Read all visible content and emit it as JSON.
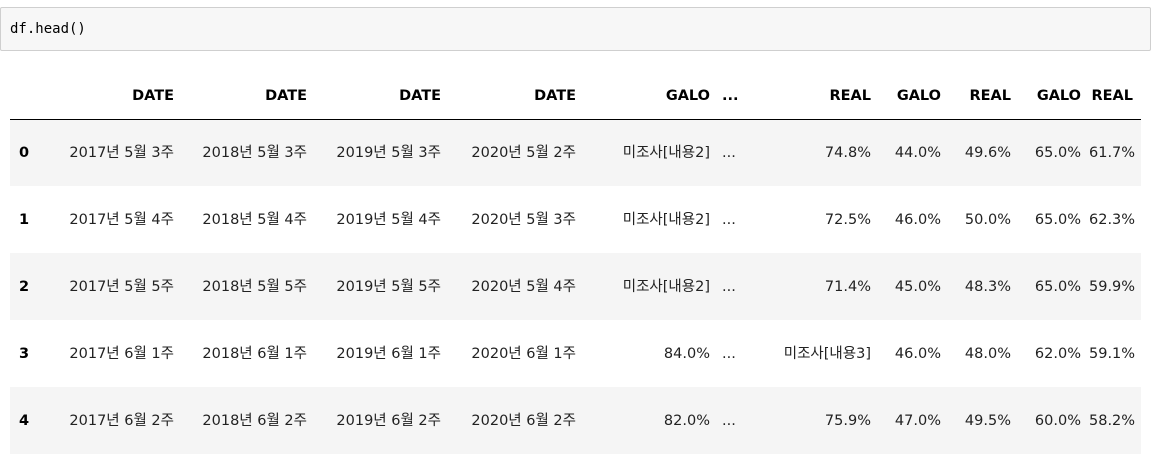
{
  "input_cell": {
    "code": "df.head()"
  },
  "table": {
    "columns": [
      "DATE",
      "DATE",
      "DATE",
      "DATE",
      "GALO",
      "...",
      "REAL",
      "GALO",
      "REAL",
      "GALO",
      "REAL"
    ],
    "index": [
      "0",
      "1",
      "2",
      "3",
      "4"
    ],
    "rows": [
      [
        "2017년 5월 3주",
        "2018년 5월 3주",
        "2019년 5월 3주",
        "2020년 5월 2주",
        "미조사[내용2]",
        "...",
        "74.8%",
        "44.0%",
        "49.6%",
        "65.0%",
        "61.7%"
      ],
      [
        "2017년 5월 4주",
        "2018년 5월 4주",
        "2019년 5월 4주",
        "2020년 5월 3주",
        "미조사[내용2]",
        "...",
        "72.5%",
        "46.0%",
        "50.0%",
        "65.0%",
        "62.3%"
      ],
      [
        "2017년 5월 5주",
        "2018년 5월 5주",
        "2019년 5월 5주",
        "2020년 5월 4주",
        "미조사[내용2]",
        "...",
        "71.4%",
        "45.0%",
        "48.3%",
        "65.0%",
        "59.9%"
      ],
      [
        "2017년 6월 1주",
        "2018년 6월 1주",
        "2019년 6월 1주",
        "2020년 6월 1주",
        "84.0%",
        "...",
        "미조사[내용3]",
        "46.0%",
        "48.0%",
        "62.0%",
        "59.1%"
      ],
      [
        "2017년 6월 2주",
        "2018년 6월 2주",
        "2019년 6월 2주",
        "2020년 6월 2주",
        "82.0%",
        "...",
        "75.9%",
        "47.0%",
        "49.5%",
        "60.0%",
        "58.2%"
      ]
    ]
  }
}
